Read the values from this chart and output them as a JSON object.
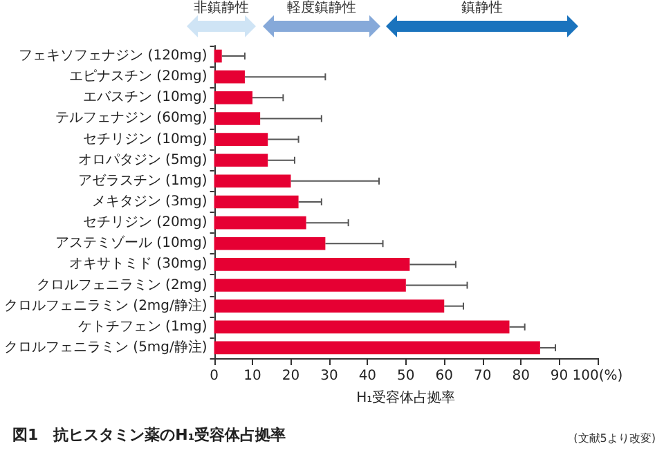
{
  "chart_data": {
    "type": "bar",
    "orientation": "horizontal",
    "title": "図1　抗ヒスタミン薬のH₁受容体占拠率",
    "xlabel": "H₁受容体占拠率",
    "annotations": [
      "非鎮静性",
      "軽度鎮静性",
      "鎮静性",
      "(文献5より改変)"
    ],
    "categories": [
      "フェキソフェナジン (120mg)",
      "エピナスチン (20mg)",
      "エバスチン (10mg)",
      "テルフェナジン (60mg)",
      "セチリジン (10mg)",
      "オロパタジン (5mg)",
      "アゼラスチン (1mg)",
      "メキタジン (3mg)",
      "セチリジン (20mg)",
      "アステミゾール (10mg)",
      "オキサトミド (30mg)",
      "クロルフェニラミン (2mg)",
      "クロルフェニラミン (2mg/静注)",
      "ケトチフェン (1mg)",
      "クロルフェニラミン (5mg/静注)"
    ],
    "values": [
      2,
      8,
      10,
      12,
      14,
      14,
      20,
      22,
      24,
      29,
      51,
      50,
      60,
      77,
      85
    ],
    "errors": [
      [
        2,
        8
      ],
      [
        8,
        29
      ],
      [
        10,
        18
      ],
      [
        12,
        28
      ],
      [
        14,
        22
      ],
      [
        14,
        21
      ],
      [
        20,
        43
      ],
      [
        22,
        28
      ],
      [
        24,
        35
      ],
      [
        29,
        44
      ],
      [
        51,
        63
      ],
      [
        50,
        66
      ],
      [
        60,
        65
      ],
      [
        77,
        81
      ],
      [
        85,
        89
      ]
    ],
    "color": "#e60033",
    "xlim": [
      0,
      100
    ],
    "xticks": [
      0,
      10,
      20,
      30,
      40,
      50,
      60,
      70,
      80,
      90,
      {
        "value": 100,
        "label": "100(%)"
      }
    ],
    "grid": false
  }
}
